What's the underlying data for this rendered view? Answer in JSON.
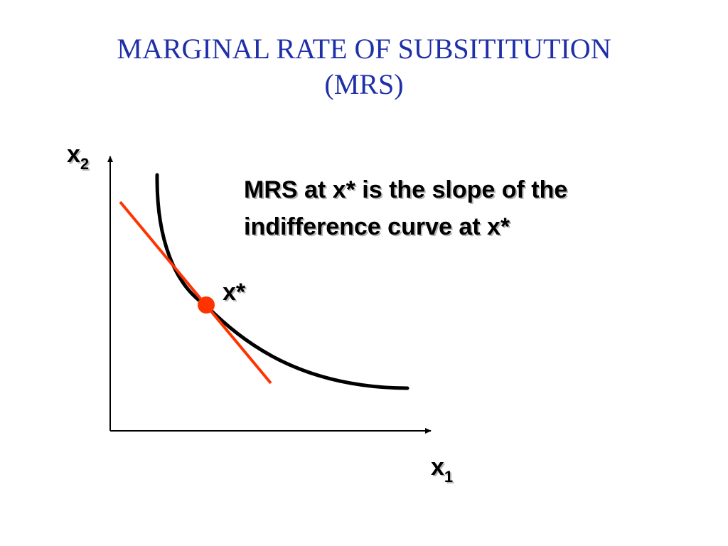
{
  "title": {
    "line1": "MARGINAL RATE OF SUBSITITUTION",
    "line2": "(MRS)"
  },
  "axes": {
    "y_label_main": "x",
    "y_label_sub": "2",
    "x_label_main": "x",
    "x_label_sub": "1"
  },
  "point": {
    "label": "x*"
  },
  "annotation": {
    "line1": "MRS at x* is the slope of the",
    "line2": "indifference curve at x*"
  },
  "colors": {
    "title": "#1f2fa8",
    "curve": "#000000",
    "tangent": "#ff3300",
    "point": "#ff3300",
    "axes": "#000000"
  }
}
